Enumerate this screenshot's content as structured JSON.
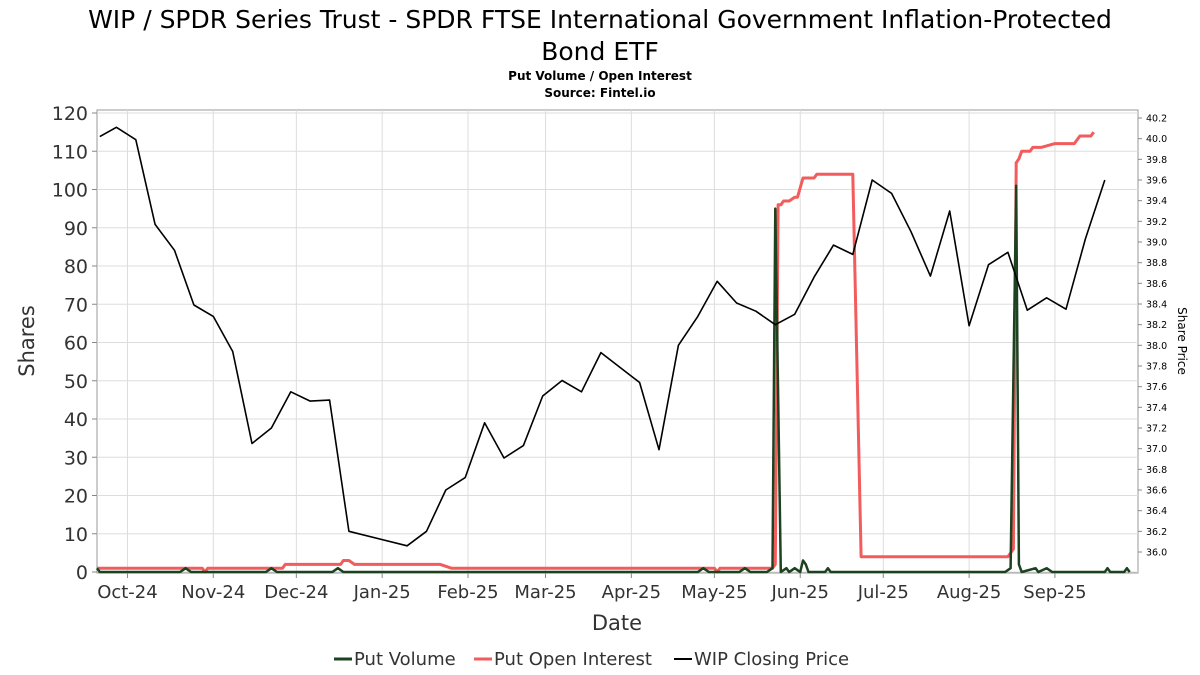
{
  "chart_data": {
    "type": "line",
    "title": "WIP / SPDR Series Trust - SPDR FTSE International Government Inflation-Protected Bond ETF",
    "title_lines": [
      "WIP / SPDR Series Trust - SPDR FTSE International Government Inflation-Protected",
      "Bond ETF"
    ],
    "subtitle": "Put Volume / Open Interest",
    "source": "Source: Fintel.io",
    "xlabel": "Date",
    "ylabel": "Shares",
    "y2label": "Share Price",
    "x_range": [
      "2024-09-20",
      "2025-10-01"
    ],
    "ylim": [
      0,
      120
    ],
    "y2lim": [
      35.86,
      40.3
    ],
    "x_ticks": [
      {
        "date": "2024-10-01",
        "label": "Oct-24"
      },
      {
        "date": "2024-11-01",
        "label": "Nov-24"
      },
      {
        "date": "2024-12-01",
        "label": "Dec-24"
      },
      {
        "date": "2025-01-01",
        "label": "Jan-25"
      },
      {
        "date": "2025-02-01",
        "label": "Feb-25"
      },
      {
        "date": "2025-03-01",
        "label": "Mar-25"
      },
      {
        "date": "2025-04-01",
        "label": "Apr-25"
      },
      {
        "date": "2025-05-01",
        "label": "May-25"
      },
      {
        "date": "2025-06-01",
        "label": "Jun-25"
      },
      {
        "date": "2025-07-01",
        "label": "Jul-25"
      },
      {
        "date": "2025-08-01",
        "label": "Aug-25"
      },
      {
        "date": "2025-09-01",
        "label": "Sep-25"
      }
    ],
    "y_ticks": [
      0,
      10,
      20,
      30,
      40,
      50,
      60,
      70,
      80,
      90,
      100,
      110,
      120
    ],
    "y2_ticks": [
      "36.0",
      "36.2",
      "36.4",
      "36.6",
      "36.8",
      "37.0",
      "37.2",
      "37.4",
      "37.6",
      "37.8",
      "38.0",
      "38.2",
      "38.4",
      "38.6",
      "38.8",
      "39.0",
      "39.2",
      "39.4",
      "39.6",
      "39.8",
      "40.0",
      "40.2"
    ],
    "grid": true,
    "legend_position": "bottom",
    "series": [
      {
        "name": "Put Volume",
        "axis": "left",
        "color": "#1c4220",
        "points": [
          [
            "2024-09-20",
            1
          ],
          [
            "2024-09-21",
            0
          ],
          [
            "2024-10-20",
            0
          ],
          [
            "2024-10-22",
            1
          ],
          [
            "2024-10-24",
            0
          ],
          [
            "2024-11-20",
            0
          ],
          [
            "2024-11-22",
            1
          ],
          [
            "2024-11-24",
            0
          ],
          [
            "2024-12-14",
            0
          ],
          [
            "2024-12-16",
            1
          ],
          [
            "2024-12-18",
            0
          ],
          [
            "2025-04-25",
            0
          ],
          [
            "2025-04-27",
            1
          ],
          [
            "2025-04-29",
            0
          ],
          [
            "2025-05-10",
            0
          ],
          [
            "2025-05-12",
            1
          ],
          [
            "2025-05-14",
            0
          ],
          [
            "2025-05-20",
            0
          ],
          [
            "2025-05-22",
            1
          ],
          [
            "2025-05-23",
            95
          ],
          [
            "2025-05-25",
            0
          ],
          [
            "2025-05-27",
            1
          ],
          [
            "2025-05-28",
            0
          ],
          [
            "2025-05-30",
            1
          ],
          [
            "2025-06-01",
            0
          ],
          [
            "2025-06-02",
            3
          ],
          [
            "2025-06-03",
            2
          ],
          [
            "2025-06-04",
            0
          ],
          [
            "2025-06-10",
            0
          ],
          [
            "2025-06-11",
            1
          ],
          [
            "2025-06-12",
            0
          ],
          [
            "2025-08-14",
            0
          ],
          [
            "2025-08-16",
            1
          ],
          [
            "2025-08-18",
            101
          ],
          [
            "2025-08-19",
            2
          ],
          [
            "2025-08-20",
            0
          ],
          [
            "2025-08-25",
            1
          ],
          [
            "2025-08-26",
            0
          ],
          [
            "2025-08-29",
            1
          ],
          [
            "2025-08-31",
            0
          ],
          [
            "2025-09-19",
            0
          ],
          [
            "2025-09-20",
            1
          ],
          [
            "2025-09-21",
            0
          ],
          [
            "2025-09-26",
            0
          ],
          [
            "2025-09-27",
            1
          ],
          [
            "2025-09-28",
            0
          ]
        ]
      },
      {
        "name": "Put Open Interest",
        "axis": "left",
        "color": "#f25c5c",
        "points": [
          [
            "2024-09-20",
            1
          ],
          [
            "2024-10-28",
            1
          ],
          [
            "2024-10-29",
            0
          ],
          [
            "2024-10-30",
            1
          ],
          [
            "2024-11-26",
            1
          ],
          [
            "2024-11-27",
            2
          ],
          [
            "2024-12-17",
            2
          ],
          [
            "2024-12-18",
            3
          ],
          [
            "2024-12-20",
            3
          ],
          [
            "2024-12-22",
            2
          ],
          [
            "2025-01-22",
            2
          ],
          [
            "2025-01-26",
            1
          ],
          [
            "2025-05-01",
            1
          ],
          [
            "2025-05-02",
            0
          ],
          [
            "2025-05-03",
            1
          ],
          [
            "2025-05-22",
            1
          ],
          [
            "2025-05-23",
            2
          ],
          [
            "2025-05-24",
            96
          ],
          [
            "2025-05-25",
            96
          ],
          [
            "2025-05-26",
            97
          ],
          [
            "2025-05-28",
            97
          ],
          [
            "2025-05-30",
            98
          ],
          [
            "2025-05-31",
            98
          ],
          [
            "2025-06-02",
            103
          ],
          [
            "2025-06-06",
            103
          ],
          [
            "2025-06-07",
            104
          ],
          [
            "2025-06-20",
            104
          ],
          [
            "2025-06-23",
            4
          ],
          [
            "2025-08-15",
            4
          ],
          [
            "2025-08-17",
            6
          ],
          [
            "2025-08-18",
            107
          ],
          [
            "2025-08-19",
            108
          ],
          [
            "2025-08-20",
            110
          ],
          [
            "2025-08-23",
            110
          ],
          [
            "2025-08-24",
            111
          ],
          [
            "2025-08-27",
            111
          ],
          [
            "2025-09-01",
            112
          ],
          [
            "2025-09-08",
            112
          ],
          [
            "2025-09-10",
            114
          ],
          [
            "2025-09-14",
            114
          ],
          [
            "2025-09-15",
            115
          ]
        ]
      },
      {
        "name": "WIP Closing Price",
        "axis": "right",
        "color": "#000000",
        "points": [
          [
            "2024-09-21",
            40.02
          ],
          [
            "2024-09-27",
            40.11
          ],
          [
            "2024-10-04",
            39.99
          ],
          [
            "2024-10-11",
            39.17
          ],
          [
            "2024-10-18",
            38.92
          ],
          [
            "2024-10-25",
            38.39
          ],
          [
            "2024-11-01",
            38.28
          ],
          [
            "2024-11-08",
            37.94
          ],
          [
            "2024-11-15",
            37.05
          ],
          [
            "2024-11-22",
            37.2
          ],
          [
            "2024-11-29",
            37.55
          ],
          [
            "2024-12-06",
            37.46
          ],
          [
            "2024-12-13",
            37.47
          ],
          [
            "2024-12-20",
            36.2
          ],
          [
            "2025-01-10",
            36.06
          ],
          [
            "2025-01-17",
            36.2
          ],
          [
            "2025-01-24",
            36.6
          ],
          [
            "2025-01-31",
            36.72
          ],
          [
            "2025-02-07",
            37.25
          ],
          [
            "2025-02-14",
            36.91
          ],
          [
            "2025-02-21",
            37.03
          ],
          [
            "2025-02-28",
            37.51
          ],
          [
            "2025-03-07",
            37.66
          ],
          [
            "2025-03-14",
            37.55
          ],
          [
            "2025-03-21",
            37.93
          ],
          [
            "2025-04-04",
            37.64
          ],
          [
            "2025-04-11",
            36.99
          ],
          [
            "2025-04-18",
            38.0
          ],
          [
            "2025-04-25",
            38.28
          ],
          [
            "2025-05-02",
            38.62
          ],
          [
            "2025-05-09",
            38.41
          ],
          [
            "2025-05-16",
            38.33
          ],
          [
            "2025-05-23",
            38.2
          ],
          [
            "2025-05-30",
            38.3
          ],
          [
            "2025-06-06",
            38.66
          ],
          [
            "2025-06-13",
            38.97
          ],
          [
            "2025-06-20",
            38.88
          ],
          [
            "2025-06-27",
            39.6
          ],
          [
            "2025-07-04",
            39.47
          ],
          [
            "2025-07-11",
            39.1
          ],
          [
            "2025-07-18",
            38.67
          ],
          [
            "2025-07-25",
            39.3
          ],
          [
            "2025-08-01",
            38.19
          ],
          [
            "2025-08-08",
            38.78
          ],
          [
            "2025-08-15",
            38.9
          ],
          [
            "2025-08-22",
            38.34
          ],
          [
            "2025-08-29",
            38.46
          ],
          [
            "2025-09-05",
            38.35
          ],
          [
            "2025-09-12",
            39.03
          ],
          [
            "2025-09-19",
            39.6
          ]
        ]
      }
    ]
  }
}
